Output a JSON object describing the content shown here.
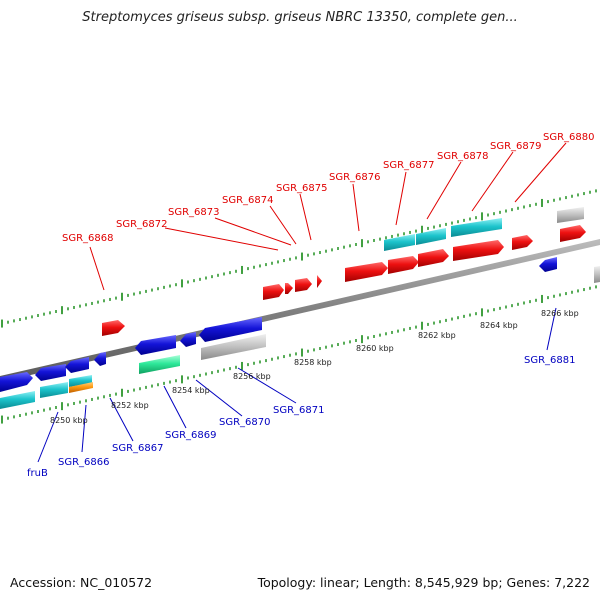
{
  "title": "Streptomyces griseus subsp. griseus NBRC 13350, complete gen...",
  "footer": {
    "accession": "Accession: NC_010572",
    "summary": "Topology: linear; Length: 8,545,929 bp; Genes: 7,222"
  },
  "colors": {
    "forward_label": "#e00000",
    "reverse_label": "#0000c0",
    "backbone": "#808080",
    "red": "#ee1111",
    "blue": "#1414d8",
    "cyan": "#1cc4cc",
    "grey": "#c4c4c4",
    "green": "#2ee89a",
    "orange": "#ff9a10",
    "tick": "#118811"
  },
  "kbp_labels": [
    "8250 kbp",
    "8252 kbp",
    "8254 kbp",
    "8256 kbp",
    "8258 kbp",
    "8260 kbp",
    "8262 kbp",
    "8264 kbp",
    "8266 kbp"
  ],
  "forward_gene_labels": [
    "SGR_6868",
    "SGR_6872",
    "SGR_6873",
    "SGR_6874",
    "SGR_6875",
    "SGR_6876",
    "SGR_6877",
    "SGR_6878",
    "SGR_6879",
    "SGR_6880"
  ],
  "reverse_gene_labels": [
    "fruB",
    "SGR_6866",
    "SGR_6867",
    "SGR_6869",
    "SGR_6870",
    "SGR_6871",
    "SGR_6881"
  ]
}
